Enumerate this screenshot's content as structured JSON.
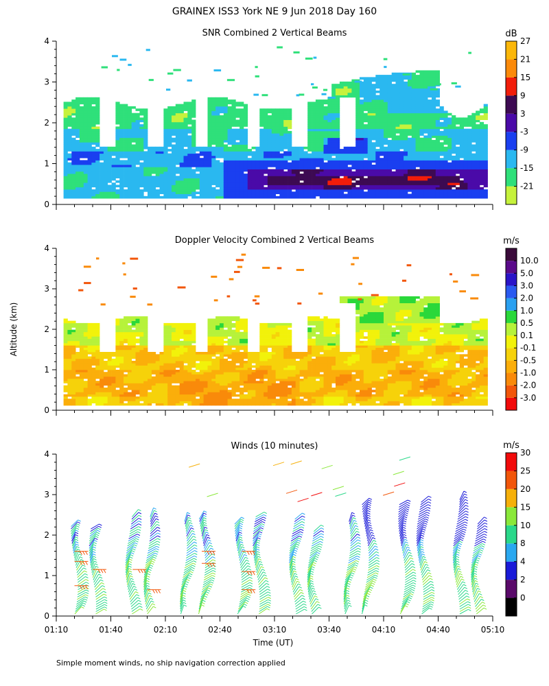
{
  "figure": {
    "title": "GRAINEX ISS3 York NE   9 Jun 2018 Day 160",
    "ylabel": "Altitude (km)",
    "xlabel": "Time (UT)",
    "footnote": "Simple moment winds, no ship navigation correction applied"
  },
  "chart_data": [
    {
      "type": "heatmap",
      "title": "SNR Combined 2 Vertical Beams",
      "ylabel": "Altitude (km)",
      "ylim": [
        0,
        4
      ],
      "yticks": [
        0,
        1,
        2,
        3,
        4
      ],
      "xlim": [
        "01:10",
        "05:10"
      ],
      "colorbar": {
        "unit": "dB",
        "tick_labels": [
          "-21",
          "-15",
          "-9",
          "-3",
          "3",
          "9",
          "15",
          "21",
          "27"
        ],
        "colors": [
          "#c6f23c",
          "#2fe07a",
          "#2ab8f0",
          "#1a3ff0",
          "#4a0aa8",
          "#3d0a52",
          "#f21d0a",
          "#fb8a0a",
          "#fbb70a"
        ]
      },
      "grid": false
    },
    {
      "type": "heatmap",
      "title": "Doppler Velocity Combined 2 Vertical Beams",
      "ylabel": "Altitude (km)",
      "ylim": [
        0,
        4
      ],
      "yticks": [
        0,
        1,
        2,
        3,
        4
      ],
      "xlim": [
        "01:10",
        "05:10"
      ],
      "colorbar": {
        "unit": "m/s",
        "tick_labels": [
          "-3.0",
          "-2.0",
          "-1.0",
          "-0.5",
          "-0.1",
          "0.1",
          "0.5",
          "1.0",
          "2.0",
          "3.0",
          "5.0",
          "10.0"
        ],
        "colors": [
          "#f20a0a",
          "#f2560a",
          "#f98a0a",
          "#fbae0a",
          "#f6d20a",
          "#f2f20a",
          "#b6f23a",
          "#2ad83a",
          "#2aa0f0",
          "#2a5af0",
          "#2a14c8",
          "#5a0a8a",
          "#3a0a3a"
        ]
      },
      "grid": false
    },
    {
      "type": "scatter",
      "title": "Winds (10 minutes)",
      "ylabel": "Altitude (km)",
      "xlabel": "Time (UT)",
      "ylim": [
        0,
        4
      ],
      "yticks": [
        0,
        1,
        2,
        3,
        4
      ],
      "xticks": [
        "01:10",
        "01:40",
        "02:10",
        "02:40",
        "03:10",
        "03:40",
        "04:10",
        "04:40",
        "05:10"
      ],
      "xlim_minutes_ut": [
        70,
        310
      ],
      "profile_times_ut": [
        "01:20",
        "01:30",
        "01:50",
        "02:00",
        "02:20",
        "02:30",
        "02:50",
        "03:00",
        "03:20",
        "03:30",
        "03:50",
        "04:00",
        "04:20",
        "04:30",
        "04:50",
        "05:00"
      ],
      "colorbar": {
        "unit": "m/s",
        "tick_labels": [
          "0",
          "2",
          "4",
          "8",
          "10",
          "15",
          "20",
          "25",
          "30"
        ],
        "colors": [
          "#000000",
          "#5a0a6a",
          "#1a1ad8",
          "#2aa8f0",
          "#2ad88a",
          "#8ae83a",
          "#f6b00a",
          "#f2560a",
          "#f20a0a"
        ]
      },
      "grid": false
    }
  ]
}
